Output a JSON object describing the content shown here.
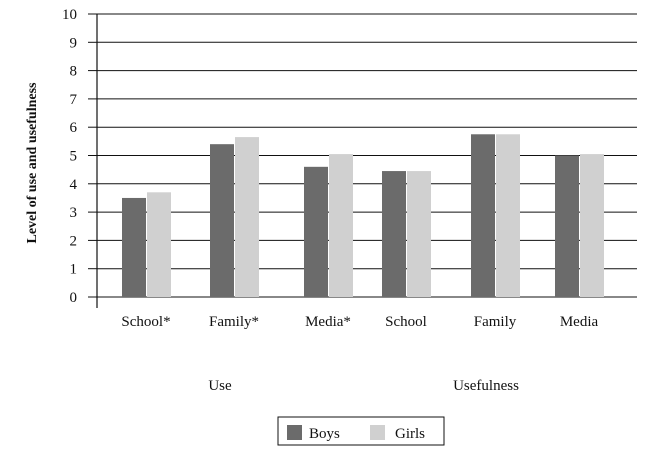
{
  "chart_data": {
    "type": "bar",
    "categories": [
      "School*",
      "Family*",
      "Media*",
      "School",
      "Family",
      "Media"
    ],
    "groups": [
      {
        "label": "Use",
        "categories": [
          "School*",
          "Family*",
          "Media*"
        ]
      },
      {
        "label": "Usefulness",
        "categories": [
          "School",
          "Family",
          "Media"
        ]
      }
    ],
    "series": [
      {
        "name": "Boys",
        "color": "#6b6b6b",
        "values": [
          3.5,
          5.4,
          4.6,
          4.45,
          5.75,
          5.0
        ]
      },
      {
        "name": "Girls",
        "color": "#d0d0d0",
        "values": [
          3.7,
          5.65,
          5.05,
          4.45,
          5.75,
          5.05
        ]
      }
    ],
    "title": "",
    "xlabel": "",
    "ylabel": "Level of use and usefulness",
    "ylim": [
      0,
      10
    ],
    "yticks": [
      "0",
      "1",
      "2",
      "3",
      "4",
      "5",
      "6",
      "7",
      "8",
      "9",
      "10"
    ],
    "grid": true,
    "legend_position": "bottom-center"
  }
}
